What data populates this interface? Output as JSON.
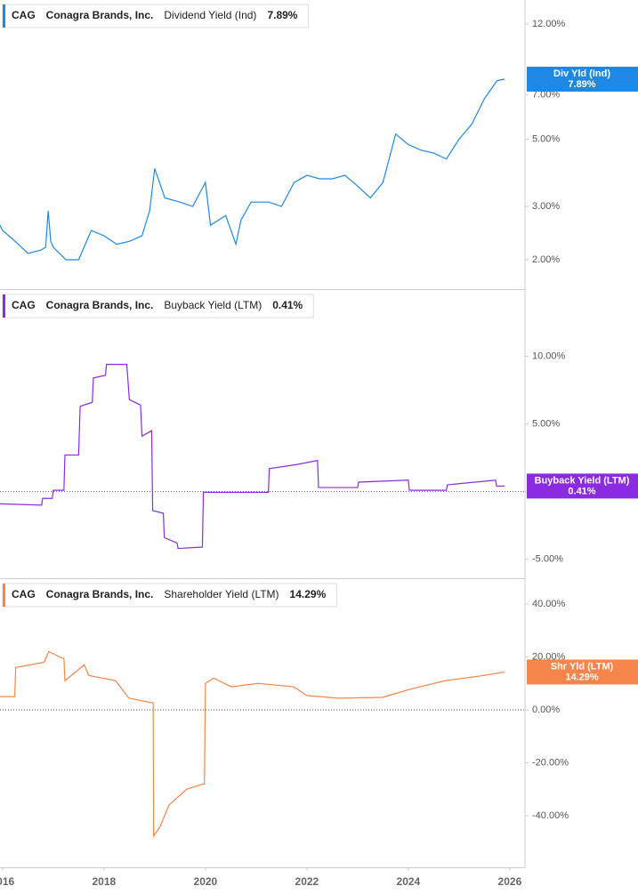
{
  "chart_data": [
    {
      "type": "line",
      "ticker": "CAG",
      "company": "Conagra Brands, Inc.",
      "last_label": "7.89%",
      "badge_label": "Div Yld (Ind)",
      "log_scale": true,
      "xlim": [
        2015.95,
        2026.3
      ],
      "ylim": [
        1.6,
        14.4
      ],
      "yticks": [
        {
          "value": 2,
          "label": "2.00%"
        },
        {
          "value": 3,
          "label": "3.00%"
        },
        {
          "value": 5,
          "label": "5.00%"
        },
        {
          "value": 7,
          "label": "7.00%"
        },
        {
          "value": 12,
          "label": "12.00%"
        }
      ],
      "x": [
        2015.95,
        2016.0,
        2016.25,
        2016.5,
        2016.75,
        2016.85,
        2016.9,
        2016.95,
        2017.0,
        2017.25,
        2017.5,
        2017.75,
        2018.0,
        2018.25,
        2018.5,
        2018.75,
        2018.9,
        2019.0,
        2019.2,
        2019.5,
        2019.75,
        2020.0,
        2020.1,
        2020.4,
        2020.6,
        2020.7,
        2020.9,
        2021.25,
        2021.5,
        2021.75,
        2022.0,
        2022.25,
        2022.5,
        2022.75,
        2023.0,
        2023.25,
        2023.5,
        2023.75,
        2024.0,
        2024.25,
        2024.5,
        2024.75,
        2025.0,
        2025.25,
        2025.5,
        2025.75,
        2025.9
      ],
      "series": [
        {
          "name": "Dividend Yield (Ind)",
          "color": "#1e88e5",
          "values": [
            2.6,
            2.5,
            2.3,
            2.1,
            2.15,
            2.2,
            2.9,
            2.3,
            2.2,
            2.0,
            2.0,
            2.5,
            2.4,
            2.25,
            2.3,
            2.4,
            2.9,
            4.0,
            3.2,
            3.1,
            3.0,
            3.6,
            2.6,
            2.8,
            2.25,
            2.7,
            3.1,
            3.1,
            3.0,
            3.6,
            3.8,
            3.7,
            3.7,
            3.8,
            3.5,
            3.2,
            3.6,
            5.2,
            4.8,
            4.6,
            4.5,
            4.3,
            5.0,
            5.6,
            6.8,
            7.8,
            7.89
          ]
        }
      ]
    },
    {
      "type": "line",
      "ticker": "CAG",
      "company": "Conagra Brands, Inc.",
      "last_label": "0.41%",
      "badge_label": "Buyback Yield (LTM)",
      "zero_line": true,
      "xlim": [
        2015.95,
        2026.3
      ],
      "ylim": [
        -6.4,
        14.9
      ],
      "yticks": [
        {
          "value": -5,
          "label": "-5.00%"
        },
        {
          "value": 0,
          "label": "0.00%"
        },
        {
          "value": 5,
          "label": "5.00%"
        },
        {
          "value": 10,
          "label": "10.00%"
        }
      ],
      "x": [
        2015.95,
        2016.77,
        2016.79,
        2016.98,
        2017.0,
        2017.21,
        2017.23,
        2017.5,
        2017.53,
        2017.77,
        2017.79,
        2018.03,
        2018.05,
        2018.45,
        2018.5,
        2018.72,
        2018.75,
        2018.94,
        2018.96,
        2019.17,
        2019.19,
        2019.44,
        2019.46,
        2019.94,
        2019.96,
        2021.24,
        2021.26,
        2021.8,
        2022.21,
        2022.23,
        2023.0,
        2023.02,
        2024.0,
        2024.02,
        2024.75,
        2024.77,
        2025.72,
        2025.74,
        2025.9
      ],
      "series": [
        {
          "name": "Buyback Yield (LTM)",
          "color": "#8a2be2",
          "values": [
            -0.9,
            -1.0,
            -0.5,
            -0.5,
            0.1,
            0.1,
            2.7,
            2.7,
            6.3,
            6.6,
            8.4,
            8.6,
            9.4,
            9.4,
            6.8,
            6.4,
            4.1,
            4.5,
            -1.4,
            -1.6,
            -3.4,
            -3.8,
            -4.2,
            -4.1,
            -0.05,
            -0.05,
            1.7,
            2.0,
            2.3,
            0.3,
            0.3,
            0.7,
            0.85,
            0.1,
            0.1,
            0.5,
            0.85,
            0.4,
            0.41
          ]
        }
      ]
    },
    {
      "type": "line",
      "ticker": "CAG",
      "company": "Conagra Brands, Inc.",
      "last_label": "14.29%",
      "badge_label": "Shr Yld (LTM)",
      "zero_line": true,
      "xlim": [
        2015.95,
        2026.3
      ],
      "ylim": [
        -59.5,
        49.4
      ],
      "yticks": [
        {
          "value": -40,
          "label": "-40.00%"
        },
        {
          "value": -20,
          "label": "-20.00%"
        },
        {
          "value": 0,
          "label": "0.00%"
        },
        {
          "value": 20,
          "label": "20.00%"
        },
        {
          "value": 40,
          "label": "40.00%"
        }
      ],
      "xticks": [
        2016,
        2018,
        2020,
        2022,
        2024,
        2026
      ],
      "x": [
        2015.95,
        2016.24,
        2016.26,
        2016.82,
        2016.91,
        2017.18,
        2017.21,
        2017.23,
        2017.61,
        2017.7,
        2018.23,
        2018.49,
        2018.93,
        2018.97,
        2018.98,
        2019.11,
        2019.28,
        2019.63,
        2019.96,
        2019.98,
        2020.0,
        2020.16,
        2020.51,
        2021.04,
        2021.74,
        2022.0,
        2022.61,
        2023.49,
        2024.02,
        2024.72,
        2025.42,
        2025.9
      ],
      "series": [
        {
          "name": "Shareholder Yield (LTM)",
          "color": "#f5854a",
          "values": [
            5.0,
            5.0,
            16,
            18,
            22,
            19.5,
            19.5,
            11,
            17,
            13,
            11,
            4.4,
            2.7,
            2.7,
            -47.7,
            -44,
            -36,
            -30,
            -28,
            -28,
            10,
            12,
            8.7,
            10,
            8.7,
            5.4,
            4.4,
            4.7,
            7.7,
            11,
            12.8,
            14.29
          ]
        }
      ]
    }
  ]
}
